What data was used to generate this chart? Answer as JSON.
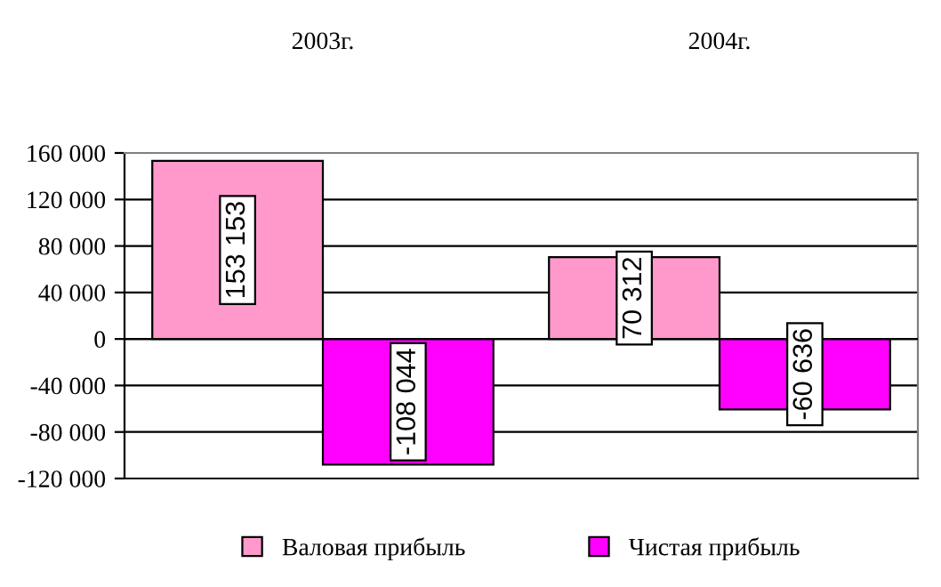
{
  "chart_data": {
    "type": "bar",
    "categories": [
      "2003г.",
      "2004г."
    ],
    "series": [
      {
        "name": "Валовая прибыль",
        "color": "#ff99cc",
        "values": [
          153153,
          70312
        ],
        "value_labels": [
          "153 153",
          "70 312"
        ]
      },
      {
        "name": "Чистая прибыль",
        "color": "#ff00ff",
        "values": [
          -108044,
          -60636
        ],
        "value_labels": [
          "-108 044",
          "-60 636"
        ]
      }
    ],
    "ylim": [
      -120000,
      160000
    ],
    "yticks": [
      {
        "value": -120000,
        "label": "-120 000"
      },
      {
        "value": -80000,
        "label": "-80 000"
      },
      {
        "value": -40000,
        "label": "-40 000"
      },
      0,
      {
        "value": 40000,
        "label": "40 000"
      },
      {
        "value": 80000,
        "label": "80 000"
      },
      {
        "value": 120000,
        "label": "120 000"
      },
      {
        "value": 160000,
        "label": "160 000"
      }
    ],
    "grid": "y",
    "legend": "bottom"
  }
}
